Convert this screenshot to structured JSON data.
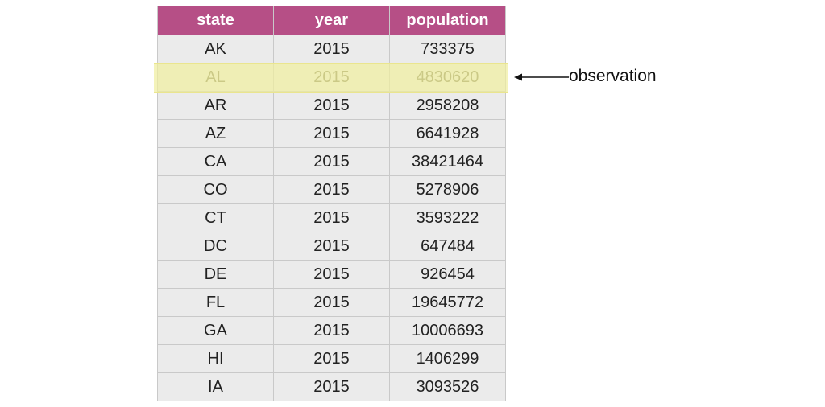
{
  "table": {
    "columns": [
      "state",
      "year",
      "population"
    ],
    "rows": [
      [
        "AK",
        "2015",
        "733375"
      ],
      [
        "AL",
        "2015",
        "4830620"
      ],
      [
        "AR",
        "2015",
        "2958208"
      ],
      [
        "AZ",
        "2015",
        "6641928"
      ],
      [
        "CA",
        "2015",
        "38421464"
      ],
      [
        "CO",
        "2015",
        "5278906"
      ],
      [
        "CT",
        "2015",
        "3593222"
      ],
      [
        "DC",
        "2015",
        "647484"
      ],
      [
        "DE",
        "2015",
        "926454"
      ],
      [
        "FL",
        "2015",
        "19645772"
      ],
      [
        "GA",
        "2015",
        "10006693"
      ],
      [
        "HI",
        "2015",
        "1406299"
      ],
      [
        "IA",
        "2015",
        "3093526"
      ]
    ],
    "highlighted_row_index": 1
  },
  "annotation": {
    "label": "observation"
  },
  "colors": {
    "header_bg": "#b64f86",
    "header_text": "#ffffff",
    "cell_bg": "#ebebeb",
    "highlight": "#f0eea0"
  }
}
